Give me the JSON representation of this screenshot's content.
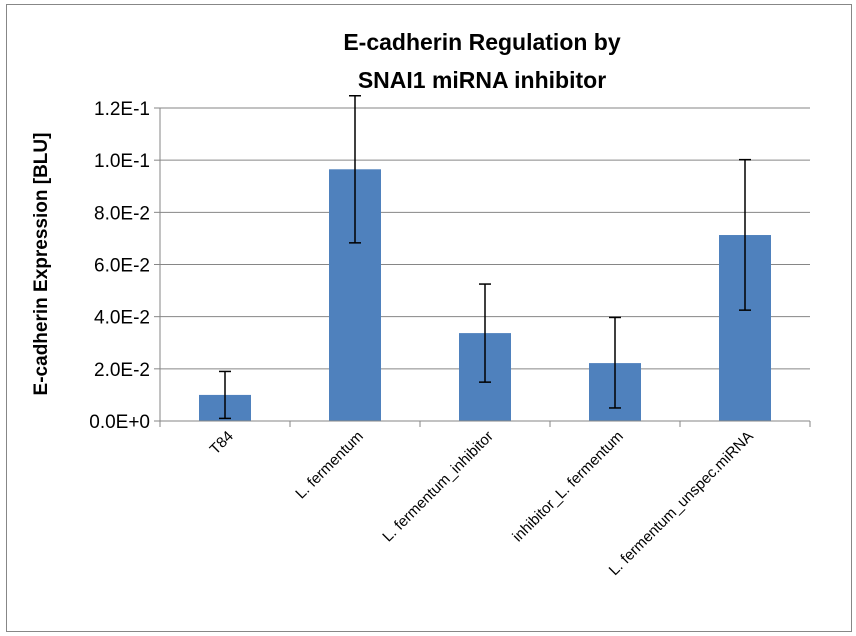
{
  "chart_data": {
    "type": "bar",
    "title_lines": [
      "E-cadherin Regulation by",
      "SNAI1 miRNA inhibitor"
    ],
    "xlabel": "",
    "ylabel": "E-cadherin Expression [BLU]",
    "categories": [
      "T84",
      "L. fermentum",
      "L. fermentum_inhibitor",
      "inhibitor_L. fermentum",
      "L. fermentum_unspec.miRNA"
    ],
    "values": [
      0.01,
      0.0965,
      0.0337,
      0.0222,
      0.0713
    ],
    "error_low": [
      0.001,
      0.0683,
      0.0149,
      0.005,
      0.0425
    ],
    "error_high": [
      0.019,
      0.1247,
      0.0525,
      0.0397,
      0.1002
    ],
    "ylim": [
      0,
      0.12
    ],
    "yticks": [
      0,
      0.02,
      0.04,
      0.06,
      0.08,
      0.1,
      0.12
    ],
    "ytick_labels": [
      "0.0E+0",
      "2.0E-2",
      "4.0E-2",
      "6.0E-2",
      "8.0E-2",
      "1.0E-1",
      "1.2E-1"
    ],
    "grid": true,
    "legend": "none",
    "colors": {
      "bar": "#4F81BD",
      "grid": "#868686",
      "axis": "#868686",
      "error": "#000000"
    }
  }
}
